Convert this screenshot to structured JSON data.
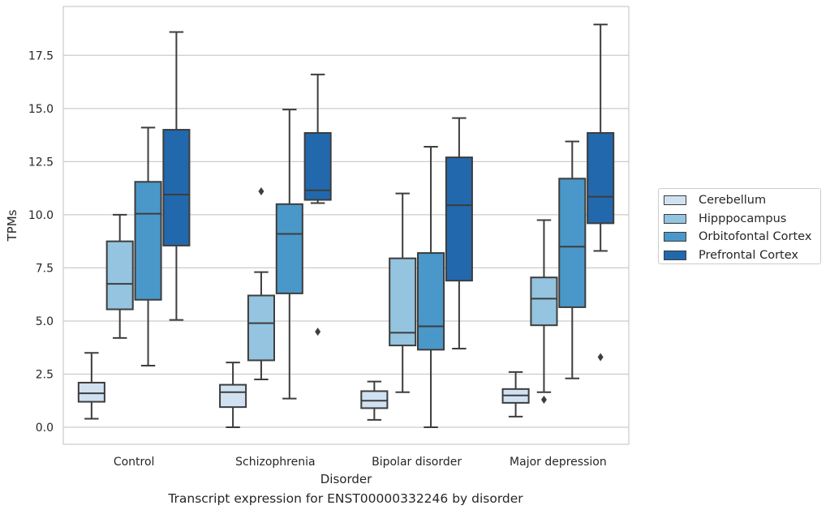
{
  "chart_data": {
    "type": "box",
    "title": "Transcript expression for ENST00000332246 by disorder",
    "xlabel": "Disorder",
    "ylabel": "TPMs",
    "ylim": [
      -0.8,
      19.8
    ],
    "yticks": [
      0.0,
      2.5,
      5.0,
      7.5,
      10.0,
      12.5,
      15.0,
      17.5
    ],
    "ytick_labels": [
      "0.0",
      "2.5",
      "5.0",
      "7.5",
      "10.0",
      "12.5",
      "15.0",
      "17.5"
    ],
    "grid": "horizontal",
    "legend_position": "right",
    "categories": [
      "Control",
      "Schizophrenia",
      "Bipolar disorder",
      "Major depression"
    ],
    "series": [
      {
        "name": "Cerebellum",
        "color": "#d0e1f2",
        "boxes": [
          {
            "whisker_low": 0.4,
            "q1": 1.2,
            "median": 1.6,
            "q3": 2.1,
            "whisker_high": 3.5,
            "outliers": []
          },
          {
            "whisker_low": 0.0,
            "q1": 0.95,
            "median": 1.65,
            "q3": 2.0,
            "whisker_high": 3.05,
            "outliers": []
          },
          {
            "whisker_low": 0.35,
            "q1": 0.9,
            "median": 1.25,
            "q3": 1.7,
            "whisker_high": 2.15,
            "outliers": []
          },
          {
            "whisker_low": 0.5,
            "q1": 1.15,
            "median": 1.5,
            "q3": 1.8,
            "whisker_high": 2.6,
            "outliers": []
          }
        ]
      },
      {
        "name": "Hipppocampus",
        "color": "#94c4df",
        "boxes": [
          {
            "whisker_low": 4.2,
            "q1": 5.55,
            "median": 6.75,
            "q3": 8.75,
            "whisker_high": 10.0,
            "outliers": []
          },
          {
            "whisker_low": 2.25,
            "q1": 3.15,
            "median": 4.9,
            "q3": 6.2,
            "whisker_high": 7.3,
            "outliers": [
              11.1
            ]
          },
          {
            "whisker_low": 1.65,
            "q1": 3.85,
            "median": 4.45,
            "q3": 7.95,
            "whisker_high": 11.0,
            "outliers": []
          },
          {
            "whisker_low": 1.65,
            "q1": 4.8,
            "median": 6.05,
            "q3": 7.05,
            "whisker_high": 9.75,
            "outliers": [
              1.3
            ]
          }
        ]
      },
      {
        "name": "Orbitofontal Cortex",
        "color": "#4a98c9",
        "boxes": [
          {
            "whisker_low": 2.9,
            "q1": 6.0,
            "median": 10.05,
            "q3": 11.55,
            "whisker_high": 14.1,
            "outliers": []
          },
          {
            "whisker_low": 1.35,
            "q1": 6.3,
            "median": 9.1,
            "q3": 10.5,
            "whisker_high": 14.95,
            "outliers": []
          },
          {
            "whisker_low": 0.0,
            "q1": 3.65,
            "median": 4.75,
            "q3": 8.2,
            "whisker_high": 13.2,
            "outliers": []
          },
          {
            "whisker_low": 2.3,
            "q1": 5.65,
            "median": 8.5,
            "q3": 11.7,
            "whisker_high": 13.45,
            "outliers": []
          }
        ]
      },
      {
        "name": "Prefrontal Cortex",
        "color": "#2268ad",
        "boxes": [
          {
            "whisker_low": 5.05,
            "q1": 8.55,
            "median": 10.95,
            "q3": 14.0,
            "whisker_high": 18.6,
            "outliers": []
          },
          {
            "whisker_low": 10.55,
            "q1": 10.7,
            "median": 11.15,
            "q3": 13.85,
            "whisker_high": 16.6,
            "outliers": [
              4.5
            ]
          },
          {
            "whisker_low": 3.7,
            "q1": 6.9,
            "median": 10.45,
            "q3": 12.7,
            "whisker_high": 14.55,
            "outliers": []
          },
          {
            "whisker_low": 8.3,
            "q1": 9.6,
            "median": 10.85,
            "q3": 13.85,
            "whisker_high": 18.95,
            "outliers": [
              3.3
            ]
          }
        ]
      }
    ]
  }
}
